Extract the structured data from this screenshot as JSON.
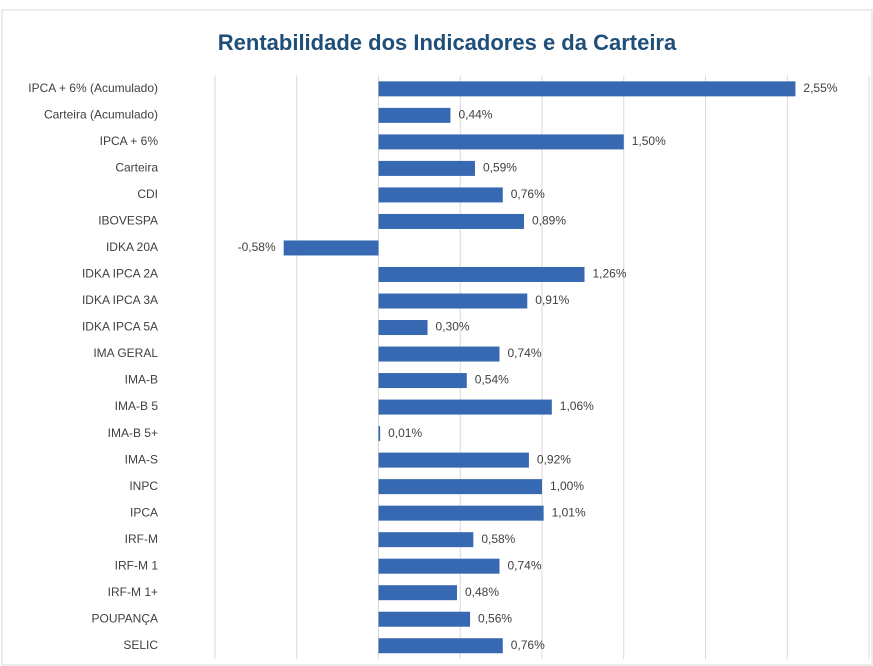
{
  "chart_data": {
    "type": "barh",
    "title": "Rentabilidade dos Indicadores e da Carteira",
    "categories": [
      "IPCA + 6% (Acumulado)",
      "Carteira (Acumulado)",
      "IPCA + 6%",
      "Carteira",
      "CDI",
      "IBOVESPA",
      "IDKA 20A",
      "IDKA IPCA 2A",
      "IDKA IPCA 3A",
      "IDKA IPCA 5A",
      "IMA GERAL",
      "IMA-B",
      "IMA-B 5",
      "IMA-B 5+",
      "IMA-S",
      "INPC",
      "IPCA",
      "IRF-M",
      "IRF-M 1",
      "IRF-M 1+",
      "POUPANÇA",
      "SELIC"
    ],
    "values": [
      2.55,
      0.44,
      1.5,
      0.59,
      0.76,
      0.89,
      -0.58,
      1.26,
      0.91,
      0.3,
      0.74,
      0.54,
      1.06,
      0.01,
      0.92,
      1.0,
      1.01,
      0.58,
      0.74,
      0.48,
      0.56,
      0.76
    ],
    "value_labels": [
      "2,55%",
      "0,44%",
      "1,50%",
      "0,59%",
      "0,76%",
      "0,89%",
      "-0,58%",
      "1,26%",
      "0,91%",
      "0,30%",
      "0,74%",
      "0,54%",
      "1,06%",
      "0,01%",
      "0,92%",
      "1,00%",
      "1,01%",
      "0,58%",
      "0,74%",
      "0,48%",
      "0,56%",
      "0,76%"
    ],
    "color": "#3768b2",
    "xlim": [
      -1,
      3
    ],
    "xticks": [
      -1,
      -0.5,
      0,
      0.5,
      1,
      1.5,
      2,
      2.5,
      3
    ],
    "grid": true
  }
}
